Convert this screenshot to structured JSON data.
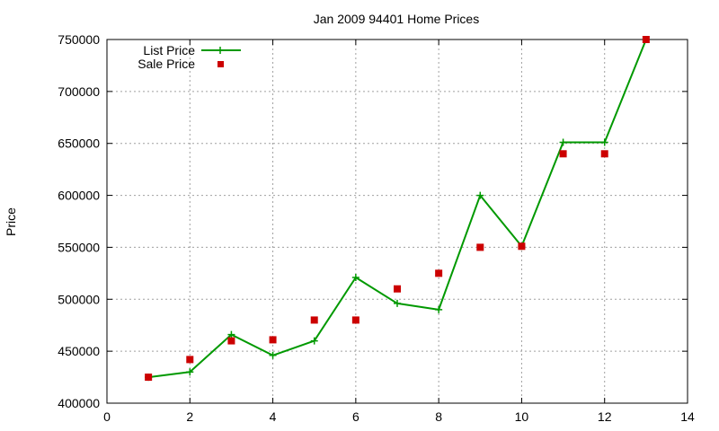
{
  "chart_data": {
    "type": "line",
    "title": "Jan 2009 94401 Home Prices",
    "xlabel": "",
    "ylabel": "Price",
    "xlim": [
      0,
      14
    ],
    "ylim": [
      400000,
      750000
    ],
    "xticks": [
      0,
      2,
      4,
      6,
      8,
      10,
      12,
      14
    ],
    "yticks": [
      400000,
      450000,
      500000,
      550000,
      600000,
      650000,
      700000,
      750000
    ],
    "grid": true,
    "legend_position": "top-left",
    "series": [
      {
        "name": "List Price",
        "style": "line+cross",
        "color": "#009900",
        "x": [
          1,
          2,
          3,
          4,
          5,
          6,
          7,
          8,
          9,
          10,
          11,
          12,
          13
        ],
        "y": [
          425000,
          430000,
          466000,
          446000,
          460000,
          521000,
          496000,
          490000,
          600000,
          551000,
          651000,
          651000,
          750000
        ]
      },
      {
        "name": "Sale Price",
        "style": "square",
        "color": "#cc0000",
        "x": [
          1,
          2,
          3,
          4,
          5,
          6,
          7,
          8,
          9,
          10,
          11,
          12,
          13
        ],
        "y": [
          425000,
          442000,
          460000,
          461000,
          480000,
          480000,
          510000,
          525000,
          550000,
          551000,
          640000,
          640000,
          750000
        ]
      }
    ]
  }
}
